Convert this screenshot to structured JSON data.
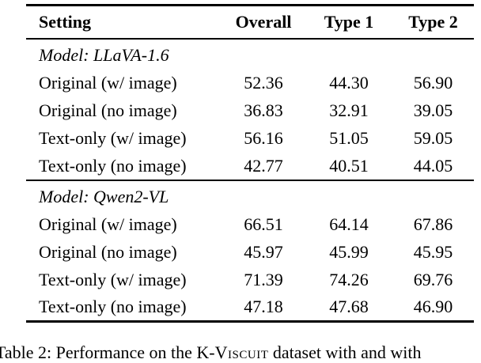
{
  "table": {
    "headers": {
      "setting": "Setting",
      "overall": "Overall",
      "type1": "Type 1",
      "type2": "Type 2"
    },
    "sections": [
      {
        "model_label": "Model: LLaVA-1.6",
        "rows": [
          {
            "setting": "Original (w/ image)",
            "overall": "52.36",
            "type1": "44.30",
            "type2": "56.90"
          },
          {
            "setting": "Original (no image)",
            "overall": "36.83",
            "type1": "32.91",
            "type2": "39.05"
          },
          {
            "setting": "Text-only (w/ image)",
            "overall": "56.16",
            "type1": "51.05",
            "type2": "59.05"
          },
          {
            "setting": "Text-only (no image)",
            "overall": "42.77",
            "type1": "40.51",
            "type2": "44.05"
          }
        ]
      },
      {
        "model_label": "Model: Qwen2-VL",
        "rows": [
          {
            "setting": "Original (w/ image)",
            "overall": "66.51",
            "type1": "64.14",
            "type2": "67.86"
          },
          {
            "setting": "Original (no image)",
            "overall": "45.97",
            "type1": "45.99",
            "type2": "45.95"
          },
          {
            "setting": "Text-only (w/ image)",
            "overall": "71.39",
            "type1": "74.26",
            "type2": "69.76"
          },
          {
            "setting": "Text-only (no image)",
            "overall": "47.18",
            "type1": "47.68",
            "type2": "46.90"
          }
        ]
      }
    ]
  },
  "caption": {
    "prefix": "Table 2: Performance on the K-",
    "dataset_name": "Viscuit",
    "suffix": " dataset with and with"
  },
  "colors": {
    "text": "#000000",
    "background": "#ffffff",
    "rule": "#000000"
  }
}
